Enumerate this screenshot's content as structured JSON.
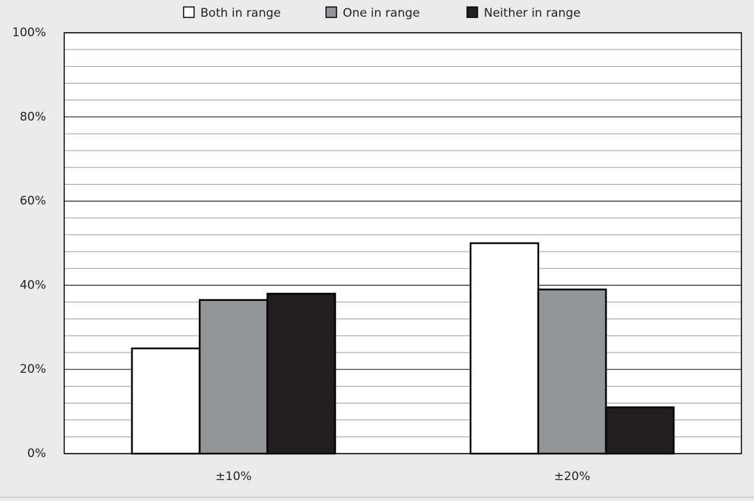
{
  "chart_data": {
    "type": "bar",
    "categories": [
      "±10%",
      "±20%"
    ],
    "series": [
      {
        "name": "Both in range",
        "color": "#ffffff",
        "values": [
          25,
          50
        ]
      },
      {
        "name": "One in range",
        "color": "#939598",
        "values": [
          36.5,
          39
        ]
      },
      {
        "name": "Neither in range",
        "color": "#231f20",
        "values": [
          38,
          11
        ]
      }
    ],
    "ylim": [
      0,
      100
    ],
    "yticks": [
      {
        "value": 0,
        "label": "0%"
      },
      {
        "value": 20,
        "label": "20%"
      },
      {
        "value": 40,
        "label": "40%"
      },
      {
        "value": 60,
        "label": "60%"
      },
      {
        "value": 80,
        "label": "80%"
      },
      {
        "value": 100,
        "label": "100%"
      }
    ],
    "grid": true,
    "legend": "top"
  }
}
